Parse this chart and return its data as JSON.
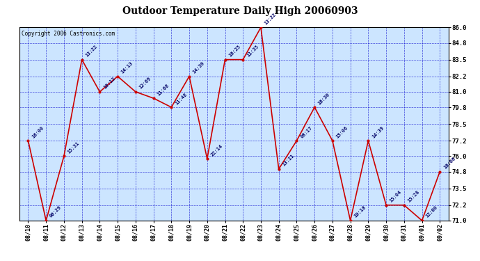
{
  "title": "Outdoor Temperature Daily High 20060903",
  "copyright": "Copyright 2006 Castronics.com",
  "background_color": "#cce5ff",
  "line_color": "#cc0000",
  "marker_color": "#cc0000",
  "grid_color": "#0000cc",
  "dates": [
    "08/10",
    "08/11",
    "08/12",
    "08/13",
    "08/14",
    "08/15",
    "08/16",
    "08/17",
    "08/18",
    "08/19",
    "08/20",
    "08/21",
    "08/22",
    "08/23",
    "08/24",
    "08/25",
    "08/26",
    "08/27",
    "08/28",
    "08/29",
    "08/30",
    "08/31",
    "09/01",
    "09/02"
  ],
  "temps": [
    77.2,
    71.0,
    76.0,
    83.5,
    81.0,
    82.2,
    81.0,
    80.5,
    79.8,
    82.2,
    75.8,
    83.5,
    83.5,
    86.0,
    75.0,
    77.2,
    79.8,
    77.2,
    71.0,
    77.2,
    72.2,
    72.2,
    71.0,
    74.8
  ],
  "time_labels": [
    "16:00",
    "00:29",
    "15:31",
    "13:22",
    "16:13",
    "14:13",
    "12:09",
    "11:08",
    "11:48",
    "14:39",
    "22:14",
    "16:25",
    "11:35",
    "13:22",
    "13:11",
    "08:17",
    "16:30",
    "15:06",
    "10:18",
    "14:39",
    "15:04",
    "15:28",
    "12:00",
    "16:06"
  ],
  "ylim": [
    71.0,
    86.0
  ],
  "yticks": [
    71.0,
    72.2,
    73.5,
    74.8,
    76.0,
    77.2,
    78.5,
    79.8,
    81.0,
    82.2,
    83.5,
    84.8,
    86.0
  ],
  "fig_width": 6.9,
  "fig_height": 3.75,
  "dpi": 100
}
